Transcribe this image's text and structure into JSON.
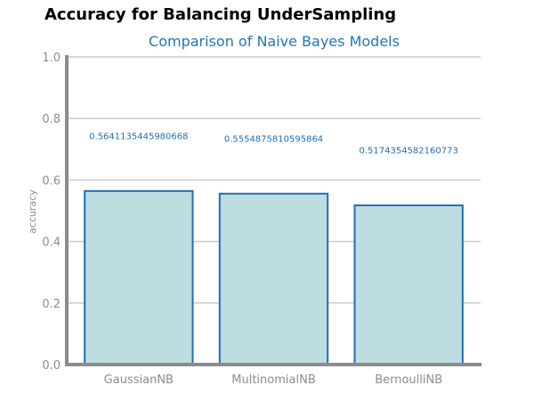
{
  "page": {
    "title": "Accuracy for Balancing UnderSampling"
  },
  "colors": {
    "bar_fill": "#bddde1",
    "bar_stroke": "#1f6fb4",
    "axis": "#8c8c8c",
    "grid": "#cccccc",
    "subtitle": "#1f77b4"
  },
  "chart_data": {
    "type": "bar",
    "title": "Comparison of Naive Bayes Models",
    "xlabel": "",
    "ylabel": "accuracy",
    "categories": [
      "GaussianNB",
      "MultinomialNB",
      "BernoulliNB"
    ],
    "values": [
      0.5641135445980668,
      0.5554875810595864,
      0.5174354582160773
    ],
    "value_labels": [
      "0.5641135445980668",
      "0.5554875810595864",
      "0.5174354582160773"
    ],
    "ylim": [
      0,
      1.0
    ],
    "yticks": [
      "0.0",
      "0.2",
      "0.4",
      "0.6",
      "0.8",
      "1.0"
    ],
    "grid": true,
    "legend": "none"
  }
}
